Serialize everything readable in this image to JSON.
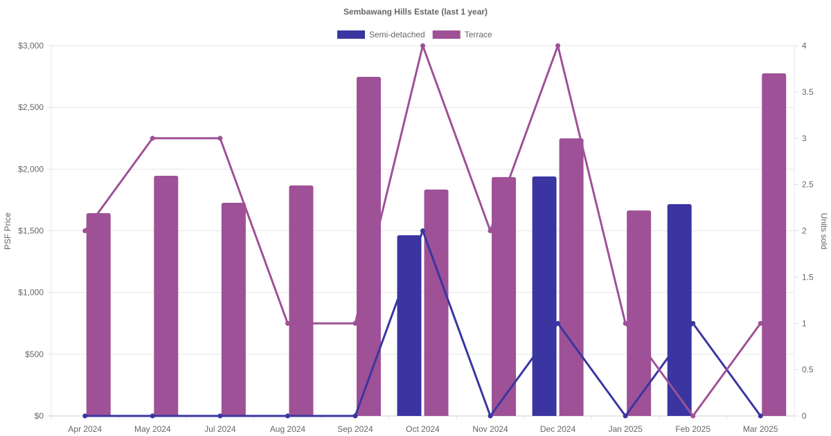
{
  "chart_data": {
    "type": "bar",
    "title": "Sembawang Hills Estate (last 1 year)",
    "ylabel": "PSF Price",
    "y2label": "Units sold",
    "ylim": [
      0,
      3000
    ],
    "y2lim": [
      0,
      4
    ],
    "yticks": [
      "$0",
      "$500",
      "$1,000",
      "$1,500",
      "$2,000",
      "$2,500",
      "$3,000"
    ],
    "y2ticks": [
      "0",
      "0.5",
      "1",
      "1.5",
      "2",
      "2.5",
      "3",
      "3.5",
      "4"
    ],
    "grid": true,
    "legend_position": "top",
    "categories": [
      "Apr 2024",
      "May 2024",
      "Jul 2024",
      "Aug 2024",
      "Sep 2024",
      "Oct 2024",
      "Nov 2024",
      "Dec 2024",
      "Jan 2025",
      "Feb 2025",
      "Mar 2025"
    ],
    "series": [
      {
        "name": "Semi-detached",
        "color": "#3a35a1",
        "psf": [
          null,
          null,
          null,
          null,
          null,
          1464,
          null,
          1940,
          null,
          1716,
          null
        ],
        "units": [
          0,
          0,
          0,
          0,
          0,
          2,
          0,
          1,
          0,
          1,
          0
        ]
      },
      {
        "name": "Terrace",
        "color": "#9e5196",
        "psf": [
          1643,
          1946,
          1727,
          1867,
          2748,
          1834,
          1935,
          2249,
          1665,
          null,
          2776
        ],
        "units": [
          2,
          3,
          3,
          1,
          1,
          4,
          2,
          4,
          1,
          0,
          1
        ]
      }
    ]
  }
}
